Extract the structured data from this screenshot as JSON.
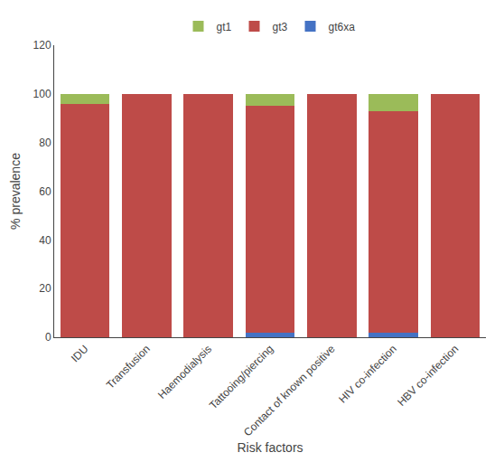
{
  "chart_data": {
    "type": "bar",
    "stacked": true,
    "categories": [
      "IDU",
      "Transfusion",
      "Haemodialysis",
      "Tattooing/piercing",
      "Contact of known positive",
      "HIV co-infection",
      "HBV co-infection"
    ],
    "series": [
      {
        "name": "gt6xa",
        "color": "#4472C4",
        "values": [
          0,
          0,
          0,
          2,
          0,
          2,
          0
        ]
      },
      {
        "name": "gt3",
        "color": "#BE4B48",
        "values": [
          96,
          100,
          100,
          93,
          100,
          91,
          100
        ]
      },
      {
        "name": "gt1",
        "color": "#9BBB59",
        "values": [
          4,
          0,
          0,
          5,
          0,
          7,
          0
        ]
      }
    ],
    "xlabel": "Risk factors",
    "ylabel": "% prevalence",
    "ylim": [
      0,
      120
    ],
    "yticks": [
      0,
      20,
      40,
      60,
      80,
      100,
      120
    ],
    "grid": false,
    "legend": "top"
  }
}
